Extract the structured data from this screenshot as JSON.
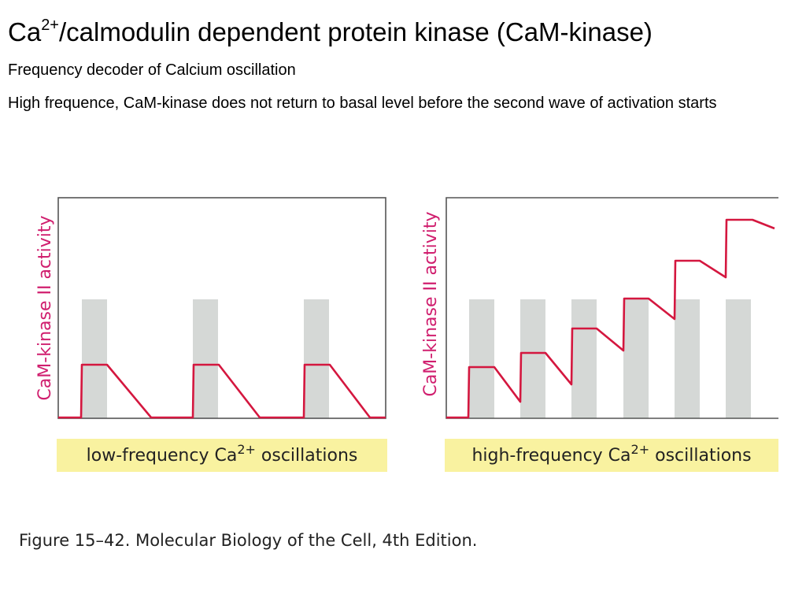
{
  "slide": {
    "title_base": "Ca",
    "title_sup": "2+",
    "title_rest": "/calmodulin dependent protein kinase (CaM-kinase)",
    "line1": "Frequency decoder of Calcium oscillation",
    "line2": "High frequence, CaM-kinase does not return to basal level before the second wave of activation starts"
  },
  "panels": [
    {
      "ylabel": "CaM-kinase II activity",
      "xlabel_pre": "low-frequency Ca",
      "xlabel_sup": "2+",
      "xlabel_post": " oscillations"
    },
    {
      "ylabel": "CaM-kinase II activity",
      "xlabel_pre": "high-frequency Ca",
      "xlabel_sup": "2+",
      "xlabel_post": " oscillations"
    }
  ],
  "figure": {
    "caption": "Figure 15–42. Molecular Biology of the Cell, 4th Edition.",
    "colors": {
      "trace": "#d4173f",
      "ylabel": "#d01e6e",
      "pulse": "#d5d8d6",
      "label_bg": "#f9f2a0",
      "axis": "#555555"
    }
  }
}
